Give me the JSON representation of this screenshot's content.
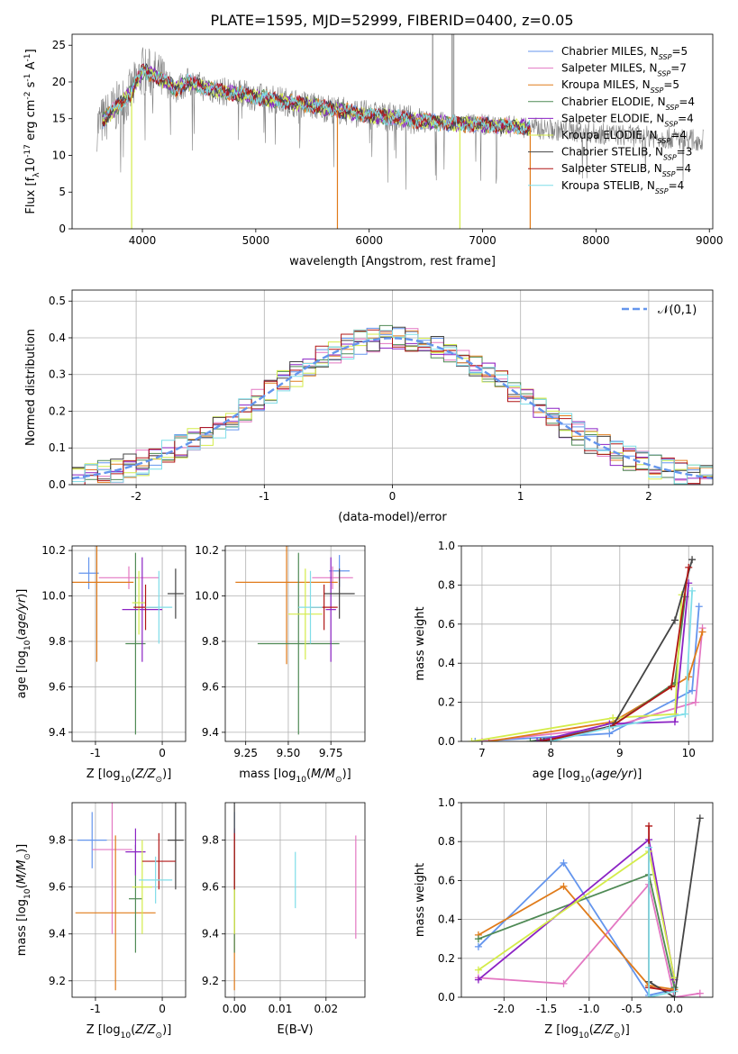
{
  "figure_title": "PLATE=1595, MJD=52999, FIBERID=0400, z=0.05",
  "colors": {
    "Chabrier MILES": "#6495ed",
    "Salpeter MILES": "#e377c2",
    "Kroupa MILES": "#e07b1a",
    "Chabrier ELODIE": "#4f8a55",
    "Salpeter ELODIE": "#8b22c4",
    "Kroupa ELODIE": "#d4ec4a",
    "Chabrier STELIB": "#444444",
    "Salpeter STELIB": "#b01616",
    "Kroupa STELIB": "#7fdde8",
    "data": "#808080",
    "gaussian": "#6495ed"
  },
  "chart_data": [
    {
      "id": "spectrum",
      "type": "line",
      "title": "PLATE=1595, MJD=52999, FIBERID=0400, z=0.05",
      "xlabel": "wavelength [Angstrom, rest frame]",
      "ylabel": "Flux [f_λ10^-17 erg cm^-2 s^-1 A^-1]",
      "xlim": [
        3380,
        9030
      ],
      "ylim": [
        0,
        26.5
      ],
      "xticks": [
        4000,
        5000,
        6000,
        7000,
        8000,
        9000
      ],
      "yticks": [
        0,
        5,
        10,
        15,
        20,
        25
      ],
      "legend": [
        {
          "name": "Chabrier MILES",
          "nssp": 5
        },
        {
          "name": "Salpeter MILES",
          "nssp": 7
        },
        {
          "name": "Kroupa MILES",
          "nssp": 5
        },
        {
          "name": "Chabrier ELODIE",
          "nssp": 4
        },
        {
          "name": "Salpeter ELODIE",
          "nssp": 4
        },
        {
          "name": "Kroupa ELODIE",
          "nssp": 4
        },
        {
          "name": "Chabrier STELIB",
          "nssp": 3
        },
        {
          "name": "Salpeter STELIB",
          "nssp": 4
        },
        {
          "name": "Kroupa STELIB",
          "nssp": 4
        }
      ],
      "legend_position": "top-right",
      "data_continuum": {
        "x": [
          3600,
          3700,
          3800,
          3900,
          4000,
          4100,
          4200,
          4300,
          4400,
          4500,
          4600,
          4800,
          5000,
          5200,
          5400,
          5600,
          5800,
          6000,
          6200,
          6400,
          6600,
          6800,
          7000,
          7200,
          7400,
          7600,
          7800,
          8000,
          8200,
          8400,
          8600,
          8800,
          8950
        ],
        "y": [
          14.0,
          15.5,
          17.0,
          18.5,
          21.5,
          21.0,
          20.0,
          19.0,
          20.0,
          19.5,
          19.0,
          18.5,
          18.0,
          17.5,
          17.0,
          16.5,
          16.0,
          15.5,
          15.2,
          14.8,
          14.5,
          14.3,
          14.2,
          14.0,
          13.8,
          13.5,
          13.3,
          13.0,
          12.8,
          12.6,
          12.4,
          12.2,
          12.0
        ]
      },
      "model_range": [
        3650,
        7420
      ],
      "dips": [
        {
          "x": 3905,
          "y": 0,
          "series": "Kroupa ELODIE"
        },
        {
          "x": 5720,
          "y": 0,
          "series": "Kroupa MILES"
        },
        {
          "x": 6800,
          "y": 0,
          "series": "Kroupa ELODIE"
        },
        {
          "x": 7420,
          "y": 0,
          "series": "Kroupa MILES"
        }
      ],
      "spikes": [
        {
          "x": 6560,
          "y": 26.5
        },
        {
          "x": 6745,
          "y": 26.5
        },
        {
          "x": 6730,
          "y": 26.5
        }
      ]
    },
    {
      "id": "residuals",
      "type": "histogram",
      "xlabel": "(data-model)/error",
      "ylabel": "Normed distribution",
      "xlim": [
        -2.5,
        2.5
      ],
      "ylim": [
        0,
        0.53
      ],
      "xticks": [
        -2,
        -1,
        0,
        1,
        2
      ],
      "yticks": [
        0.0,
        0.1,
        0.2,
        0.3,
        0.4,
        0.5
      ],
      "bin_width": 0.1,
      "gaussian_label": "𝒩(0,1)",
      "gaussian_mean": 0,
      "gaussian_sigma": 1,
      "legend_position": "top-right"
    },
    {
      "id": "age_vs_Z",
      "type": "errorbar",
      "xlabel": "Z [log10(Z/Z☉)]",
      "ylabel": "age [log10(age/yr)]",
      "xlim": [
        -1.35,
        0.35
      ],
      "ylim": [
        9.36,
        10.22
      ],
      "xticks": [
        -1,
        0
      ],
      "yticks": [
        9.4,
        9.6,
        9.8,
        10.0,
        10.2
      ],
      "points": [
        {
          "series": "Chabrier MILES",
          "x": -1.1,
          "xerr": 0.15,
          "y": 10.1,
          "yerr": 0.07
        },
        {
          "series": "Salpeter MILES",
          "x": -0.5,
          "xerr": 0.45,
          "y": 10.08,
          "yerr": 0.05
        },
        {
          "series": "Kroupa MILES",
          "x": -0.98,
          "xerr": 0.55,
          "y": 10.06,
          "yerr": 0.35
        },
        {
          "series": "Chabrier ELODIE",
          "x": -0.4,
          "xerr": 0.15,
          "y": 9.79,
          "yerr": 0.4
        },
        {
          "series": "Salpeter ELODIE",
          "x": -0.3,
          "xerr": 0.3,
          "y": 9.94,
          "yerr": 0.23
        },
        {
          "series": "Kroupa ELODIE",
          "x": -0.35,
          "xerr": 0.1,
          "y": 9.97,
          "yerr": 0.14
        },
        {
          "series": "Chabrier STELIB",
          "x": 0.2,
          "xerr": 0.12,
          "y": 10.01,
          "yerr": 0.11
        },
        {
          "series": "Salpeter STELIB",
          "x": -0.25,
          "xerr": 0.18,
          "y": 9.95,
          "yerr": 0.1
        },
        {
          "series": "Kroupa STELIB",
          "x": -0.05,
          "xerr": 0.2,
          "y": 9.95,
          "yerr": 0.16
        }
      ]
    },
    {
      "id": "age_vs_mass",
      "type": "errorbar",
      "xlabel": "mass [log10(M/M☉)]",
      "ylabel": "",
      "xlim": [
        9.13,
        9.95
      ],
      "ylim": [
        9.36,
        10.22
      ],
      "xticks": [
        9.25,
        9.5,
        9.75
      ],
      "yticks": [
        9.4,
        9.6,
        9.8,
        10.0,
        10.2
      ],
      "points": [
        {
          "series": "Chabrier MILES",
          "x": 9.8,
          "xerr": 0.06,
          "y": 10.11,
          "yerr": 0.07
        },
        {
          "series": "Salpeter MILES",
          "x": 9.76,
          "xerr": 0.12,
          "y": 10.08,
          "yerr": 0.05
        },
        {
          "series": "Kroupa MILES",
          "x": 9.49,
          "xerr": 0.3,
          "y": 10.06,
          "yerr": 0.36
        },
        {
          "series": "Chabrier ELODIE",
          "x": 9.56,
          "xerr": 0.24,
          "y": 9.79,
          "yerr": 0.4
        },
        {
          "series": "Salpeter ELODIE",
          "x": 9.75,
          "xerr": 0.03,
          "y": 9.94,
          "yerr": 0.23
        },
        {
          "series": "Kroupa ELODIE",
          "x": 9.6,
          "xerr": 0.1,
          "y": 9.92,
          "yerr": 0.2
        },
        {
          "series": "Chabrier STELIB",
          "x": 9.8,
          "xerr": 0.09,
          "y": 10.01,
          "yerr": 0.11
        },
        {
          "series": "Salpeter STELIB",
          "x": 9.71,
          "xerr": 0.08,
          "y": 9.95,
          "yerr": 0.1
        },
        {
          "series": "Kroupa STELIB",
          "x": 9.63,
          "xerr": 0.07,
          "y": 9.95,
          "yerr": 0.16
        }
      ]
    },
    {
      "id": "massweight_vs_age",
      "type": "line",
      "xlabel": "age [log10(age/yr)]",
      "ylabel": "mass weight",
      "xlim": [
        6.7,
        10.35
      ],
      "ylim": [
        0,
        1.0
      ],
      "xticks": [
        7,
        8,
        9,
        10
      ],
      "yticks": [
        0.0,
        0.2,
        0.4,
        0.6,
        0.8,
        1.0
      ],
      "series": [
        {
          "name": "Chabrier MILES",
          "x": [
            6.9,
            8.85,
            10.05,
            10.15
          ],
          "y": [
            0.0,
            0.04,
            0.26,
            0.69
          ]
        },
        {
          "name": "Salpeter MILES",
          "x": [
            7.0,
            8.85,
            10.1,
            10.2
          ],
          "y": [
            0.0,
            0.07,
            0.2,
            0.58
          ]
        },
        {
          "name": "Kroupa MILES",
          "x": [
            7.1,
            8.9,
            10.0,
            10.2
          ],
          "y": [
            0.0,
            0.1,
            0.33,
            0.56
          ]
        },
        {
          "name": "Chabrier ELODIE",
          "x": [
            7.7,
            8.85,
            9.8,
            9.95
          ],
          "y": [
            0.0,
            0.07,
            0.3,
            0.74
          ]
        },
        {
          "name": "Salpeter ELODIE",
          "x": [
            7.8,
            8.85,
            9.8,
            10.0
          ],
          "y": [
            0.0,
            0.09,
            0.1,
            0.81
          ]
        },
        {
          "name": "Kroupa ELODIE",
          "x": [
            6.85,
            8.9,
            9.8,
            9.9
          ],
          "y": [
            0.0,
            0.12,
            0.14,
            0.75
          ]
        },
        {
          "name": "Chabrier STELIB",
          "x": [
            7.9,
            8.9,
            9.8,
            10.05
          ],
          "y": [
            0.0,
            0.08,
            0.62,
            0.93
          ]
        },
        {
          "name": "Salpeter STELIB",
          "x": [
            7.85,
            8.85,
            9.75,
            10.0
          ],
          "y": [
            0.0,
            0.07,
            0.28,
            0.89
          ]
        },
        {
          "name": "Kroupa STELIB",
          "x": [
            8.0,
            8.85,
            9.95,
            10.05
          ],
          "y": [
            0.0,
            0.07,
            0.14,
            0.77
          ]
        }
      ]
    },
    {
      "id": "mass_vs_Z",
      "type": "errorbar",
      "xlabel": "Z [log10(Z/Z☉)]",
      "ylabel": "mass [log10(M/M☉)]",
      "xlim": [
        -1.35,
        0.35
      ],
      "ylim": [
        9.13,
        9.96
      ],
      "xticks": [
        -1,
        0
      ],
      "yticks": [
        9.2,
        9.4,
        9.6,
        9.8
      ],
      "points": [
        {
          "series": "Chabrier MILES",
          "x": -1.05,
          "xerr": 0.22,
          "y": 9.8,
          "yerr": 0.12
        },
        {
          "series": "Salpeter MILES",
          "x": -0.75,
          "xerr": 0.3,
          "y": 9.76,
          "yerr": 0.36
        },
        {
          "series": "Kroupa MILES",
          "x": -0.7,
          "xerr": 0.6,
          "y": 9.49,
          "yerr": 0.33
        },
        {
          "series": "Chabrier ELODIE",
          "x": -0.4,
          "xerr": 0.1,
          "y": 9.55,
          "yerr": 0.23
        },
        {
          "series": "Salpeter ELODIE",
          "x": -0.4,
          "xerr": 0.15,
          "y": 9.75,
          "yerr": 0.1
        },
        {
          "series": "Kroupa ELODIE",
          "x": -0.3,
          "xerr": 0.15,
          "y": 9.6,
          "yerr": 0.2
        },
        {
          "series": "Chabrier STELIB",
          "x": 0.2,
          "xerr": 0.12,
          "y": 9.8,
          "yerr": 0.21
        },
        {
          "series": "Salpeter STELIB",
          "x": -0.05,
          "xerr": 0.25,
          "y": 9.71,
          "yerr": 0.12
        },
        {
          "series": "Kroupa STELIB",
          "x": -0.1,
          "xerr": 0.25,
          "y": 9.63,
          "yerr": 0.1
        }
      ]
    },
    {
      "id": "mass_vs_ebv",
      "type": "errorbar",
      "xlabel": "E(B-V)",
      "ylabel": "",
      "xlim": [
        -0.002,
        0.0285
      ],
      "ylim": [
        9.13,
        9.96
      ],
      "xticks": [
        0.0,
        0.01,
        0.02
      ],
      "yticks": [
        9.2,
        9.4,
        9.6,
        9.8
      ],
      "points": [
        {
          "series": "Chabrier MILES",
          "x": 0.0,
          "xerr": 0,
          "y": 9.8,
          "yerr": 0.12
        },
        {
          "series": "Salpeter MILES",
          "x": 0.0265,
          "xerr": 0,
          "y": 9.6,
          "yerr": 0.22
        },
        {
          "series": "Kroupa MILES",
          "x": 0.0,
          "xerr": 0,
          "y": 9.49,
          "yerr": 0.33
        },
        {
          "series": "Chabrier ELODIE",
          "x": 0.0,
          "xerr": 0,
          "y": 9.55,
          "yerr": 0.23
        },
        {
          "series": "Salpeter ELODIE",
          "x": 0.0,
          "xerr": 0,
          "y": 9.75,
          "yerr": 0.1
        },
        {
          "series": "Kroupa ELODIE",
          "x": 0.0,
          "xerr": 0,
          "y": 9.6,
          "yerr": 0.2
        },
        {
          "series": "Chabrier STELIB",
          "x": 0.0,
          "xerr": 0,
          "y": 9.8,
          "yerr": 0.21
        },
        {
          "series": "Salpeter STELIB",
          "x": 0.0,
          "xerr": 0,
          "y": 9.71,
          "yerr": 0.12
        },
        {
          "series": "Kroupa STELIB",
          "x": 0.0133,
          "xerr": 0,
          "y": 9.63,
          "yerr": 0.12
        }
      ]
    },
    {
      "id": "massweight_vs_Z",
      "type": "line",
      "xlabel": "Z [log10(Z/Z☉)]",
      "ylabel": "mass weight",
      "xlim": [
        -2.5,
        0.45
      ],
      "ylim": [
        0,
        1.0
      ],
      "xticks": [
        -2.0,
        -1.5,
        -1.0,
        -0.5,
        0.0
      ],
      "yticks": [
        0.0,
        0.2,
        0.4,
        0.6,
        0.8,
        1.0
      ],
      "series": [
        {
          "name": "Chabrier MILES",
          "x": [
            -2.3,
            -1.3,
            -0.3,
            0.0
          ],
          "y": [
            0.26,
            0.69,
            0.01,
            0.04
          ]
        },
        {
          "name": "Salpeter MILES",
          "x": [
            -2.3,
            -1.3,
            -0.3,
            0.0,
            0.3
          ],
          "y": [
            0.1,
            0.07,
            0.58,
            0.0,
            0.02
          ]
        },
        {
          "name": "Kroupa MILES",
          "x": [
            -2.3,
            -1.3,
            -0.3,
            0.0
          ],
          "y": [
            0.32,
            0.57,
            0.06,
            0.04
          ]
        },
        {
          "name": "Chabrier ELODIE",
          "x": [
            -2.3,
            -0.3,
            0.0
          ],
          "y": [
            0.3,
            0.63,
            0.05
          ]
        },
        {
          "name": "Salpeter ELODIE",
          "x": [
            -2.3,
            -0.3,
            0.0
          ],
          "y": [
            0.09,
            0.81,
            0.09
          ]
        },
        {
          "name": "Kroupa ELODIE",
          "x": [
            -2.3,
            -0.3,
            0.0
          ],
          "y": [
            0.14,
            0.75,
            0.1
          ]
        },
        {
          "name": "Chabrier STELIB",
          "x": [
            -0.3,
            0.0,
            0.3
          ],
          "y": [
            0.08,
            0.0,
            0.92
          ]
        },
        {
          "name": "Salpeter STELIB",
          "x": [
            -0.3,
            -0.3,
            0.0
          ],
          "y": [
            0.88,
            0.05,
            0.03
          ]
        },
        {
          "name": "Kroupa STELIB",
          "x": [
            -0.3,
            -0.3,
            0.0
          ],
          "y": [
            0.77,
            0.0,
            0.03
          ]
        }
      ]
    }
  ]
}
